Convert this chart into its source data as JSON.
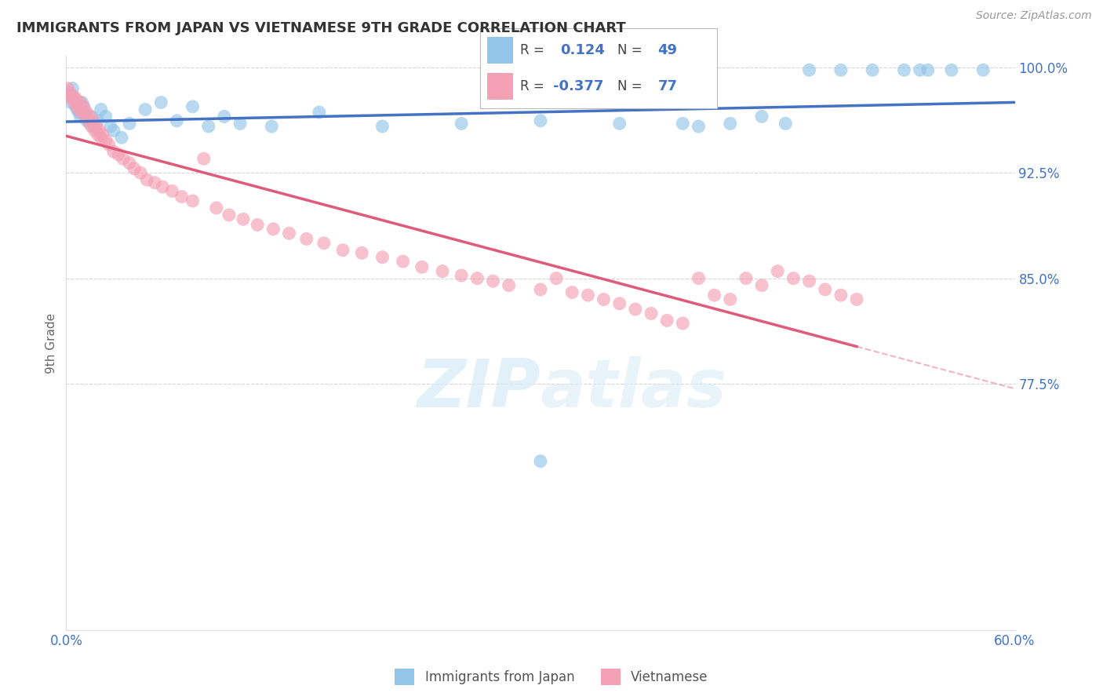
{
  "title": "IMMIGRANTS FROM JAPAN VS VIETNAMESE 9TH GRADE CORRELATION CHART",
  "source_text": "Source: ZipAtlas.com",
  "ylabel": "9th Grade",
  "xlim": [
    0.0,
    0.6
  ],
  "ylim": [
    0.6,
    1.008
  ],
  "xtick_vals": [
    0.0,
    0.1,
    0.2,
    0.3,
    0.4,
    0.5,
    0.6
  ],
  "xtick_labels": [
    "0.0%",
    "",
    "",
    "",
    "",
    "",
    "60.0%"
  ],
  "ytick_vals": [
    0.775,
    0.85,
    0.925,
    1.0
  ],
  "ytick_labels": [
    "77.5%",
    "85.0%",
    "92.5%",
    "100.0%"
  ],
  "legend_r_japan": "0.124",
  "legend_n_japan": "49",
  "legend_r_vietnamese": "-0.377",
  "legend_n_vietnamese": "77",
  "color_japan": "#92C5E8",
  "color_vietnamese": "#F4A0B5",
  "color_trendline_japan": "#4472C4",
  "color_trendline_vietnamese": "#E05A7A",
  "color_axis_labels": "#4472C4",
  "color_grid": "#CCCCCC",
  "title_color": "#333333",
  "japan_x": [
    0.002,
    0.003,
    0.004,
    0.005,
    0.006,
    0.007,
    0.008,
    0.009,
    0.01,
    0.011,
    0.012,
    0.013,
    0.015,
    0.016,
    0.018,
    0.02,
    0.022,
    0.025,
    0.028,
    0.03,
    0.035,
    0.04,
    0.05,
    0.06,
    0.07,
    0.08,
    0.09,
    0.1,
    0.11,
    0.13,
    0.16,
    0.2,
    0.25,
    0.3,
    0.35,
    0.4,
    0.44,
    0.47,
    0.49,
    0.51,
    0.53,
    0.545,
    0.39,
    0.42,
    0.455,
    0.3,
    0.54,
    0.56,
    0.58
  ],
  "japan_y": [
    0.98,
    0.975,
    0.985,
    0.978,
    0.972,
    0.97,
    0.968,
    0.965,
    0.975,
    0.972,
    0.968,
    0.962,
    0.96,
    0.965,
    0.958,
    0.962,
    0.97,
    0.965,
    0.958,
    0.955,
    0.95,
    0.96,
    0.97,
    0.975,
    0.962,
    0.972,
    0.958,
    0.965,
    0.96,
    0.958,
    0.968,
    0.958,
    0.96,
    0.962,
    0.96,
    0.958,
    0.965,
    0.998,
    0.998,
    0.998,
    0.998,
    0.998,
    0.96,
    0.96,
    0.96,
    0.72,
    0.998,
    0.998,
    0.998
  ],
  "viet_x": [
    0.001,
    0.002,
    0.003,
    0.004,
    0.005,
    0.006,
    0.007,
    0.008,
    0.009,
    0.01,
    0.011,
    0.012,
    0.013,
    0.014,
    0.015,
    0.016,
    0.017,
    0.018,
    0.019,
    0.02,
    0.021,
    0.022,
    0.023,
    0.025,
    0.027,
    0.03,
    0.033,
    0.036,
    0.04,
    0.043,
    0.047,
    0.051,
    0.056,
    0.061,
    0.067,
    0.073,
    0.08,
    0.087,
    0.095,
    0.103,
    0.112,
    0.121,
    0.131,
    0.141,
    0.152,
    0.163,
    0.175,
    0.187,
    0.2,
    0.213,
    0.225,
    0.238,
    0.25,
    0.26,
    0.27,
    0.28,
    0.3,
    0.31,
    0.32,
    0.33,
    0.34,
    0.35,
    0.36,
    0.37,
    0.38,
    0.39,
    0.4,
    0.41,
    0.42,
    0.43,
    0.44,
    0.45,
    0.46,
    0.47,
    0.48,
    0.49,
    0.5
  ],
  "viet_y": [
    0.985,
    0.982,
    0.978,
    0.98,
    0.975,
    0.978,
    0.972,
    0.97,
    0.975,
    0.968,
    0.972,
    0.965,
    0.968,
    0.962,
    0.965,
    0.958,
    0.962,
    0.955,
    0.958,
    0.952,
    0.955,
    0.95,
    0.952,
    0.948,
    0.945,
    0.94,
    0.938,
    0.935,
    0.932,
    0.928,
    0.925,
    0.92,
    0.918,
    0.915,
    0.912,
    0.908,
    0.905,
    0.935,
    0.9,
    0.895,
    0.892,
    0.888,
    0.885,
    0.882,
    0.878,
    0.875,
    0.87,
    0.868,
    0.865,
    0.862,
    0.858,
    0.855,
    0.852,
    0.85,
    0.848,
    0.845,
    0.842,
    0.85,
    0.84,
    0.838,
    0.835,
    0.832,
    0.828,
    0.825,
    0.82,
    0.818,
    0.85,
    0.838,
    0.835,
    0.85,
    0.845,
    0.855,
    0.85,
    0.848,
    0.842,
    0.838,
    0.835
  ]
}
